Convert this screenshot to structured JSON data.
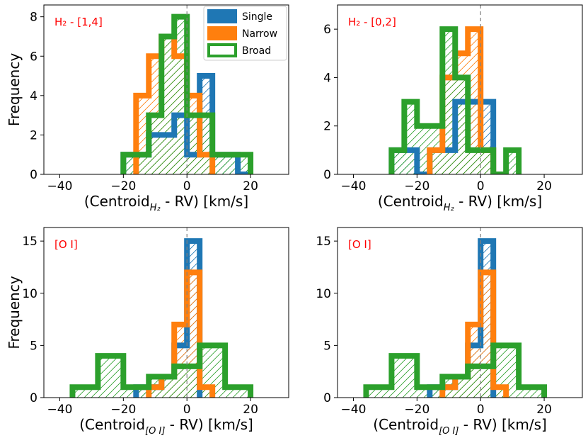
{
  "colors": {
    "single": "#1f77b4",
    "narrow": "#ff7f0e",
    "broad": "#2ca02c",
    "label": "#ff0000",
    "zero_line": "#808080"
  },
  "legend": [
    {
      "key": "single",
      "label": "Single"
    },
    {
      "key": "narrow",
      "label": "Narrow"
    },
    {
      "key": "broad",
      "label": "Broad"
    }
  ],
  "chart_data": [
    {
      "type": "histogram",
      "panel_label": "H₂ - [1,4]",
      "ylabel": "Frequency",
      "xlabel_prefix": "(Centroid",
      "xlabel_sub": "H₂",
      "xlabel_suffix": " - RV) [km/s]",
      "xlim": [
        -45,
        32
      ],
      "ylim": [
        0,
        8.6
      ],
      "xticks": [
        -40,
        -20,
        0,
        20
      ],
      "xtick_labels": [
        "−40",
        "−20",
        "0",
        "20"
      ],
      "yticks": [
        0,
        2,
        4,
        6,
        8
      ],
      "ytick_labels": [
        "0",
        "2",
        "4",
        "6",
        "8"
      ],
      "series": [
        {
          "name": "Single",
          "key": "single",
          "edges": [
            -20,
            -16,
            -12,
            -8,
            -4,
            0,
            4,
            8,
            12,
            16,
            20
          ],
          "counts": [
            1,
            1,
            2,
            2,
            3,
            1,
            5,
            1,
            1,
            0
          ]
        },
        {
          "name": "Narrow",
          "key": "narrow",
          "edges": [
            -16,
            -12,
            -8,
            -4,
            0,
            4,
            8
          ],
          "counts": [
            4,
            6,
            7,
            6,
            4,
            1
          ]
        },
        {
          "name": "Broad",
          "key": "broad",
          "edges": [
            -20,
            -16,
            -12,
            -8,
            -4,
            0,
            4,
            8,
            12,
            16,
            20
          ],
          "counts": [
            1,
            1,
            3,
            7,
            8,
            3,
            3,
            1,
            1,
            1
          ]
        }
      ]
    },
    {
      "type": "histogram",
      "panel_label": "H₂ - [0,2]",
      "ylabel": "",
      "xlabel_prefix": "(Centroid",
      "xlabel_sub": "H₂",
      "xlabel_suffix": " - RV) [km/s]",
      "xlim": [
        -45,
        32
      ],
      "ylim": [
        0,
        7
      ],
      "xticks": [
        -40,
        -20,
        0,
        20
      ],
      "xtick_labels": [
        "−40",
        "−20",
        "0",
        "20"
      ],
      "yticks": [
        0,
        2,
        4,
        6
      ],
      "ytick_labels": [
        "0",
        "2",
        "4",
        "6"
      ],
      "series": [
        {
          "name": "Single",
          "key": "single",
          "edges": [
            -28,
            -24,
            -20,
            -16,
            -12,
            -8,
            -4,
            0,
            4
          ],
          "counts": [
            1,
            1,
            0,
            1,
            1,
            3,
            3,
            3
          ]
        },
        {
          "name": "Narrow",
          "key": "narrow",
          "edges": [
            -16,
            -12,
            -8,
            -4,
            0,
            4
          ],
          "counts": [
            1,
            4,
            5,
            6,
            1
          ]
        },
        {
          "name": "Broad",
          "key": "broad",
          "edges": [
            -28,
            -24,
            -20,
            -16,
            -12,
            -8,
            -4,
            0,
            4,
            8,
            12
          ],
          "counts": [
            1,
            3,
            2,
            2,
            6,
            4,
            1,
            1,
            0,
            1
          ]
        }
      ]
    },
    {
      "type": "histogram",
      "panel_label": "[O I]",
      "ylabel": "Frequency",
      "xlabel_prefix": "(Centroid",
      "xlabel_sub": "[O I]",
      "xlabel_suffix": " - RV) [km/s]",
      "xlim": [
        -45,
        32
      ],
      "ylim": [
        0,
        16.3
      ],
      "xticks": [
        -40,
        -20,
        0,
        20
      ],
      "xtick_labels": [
        "−40",
        "−20",
        "0",
        "20"
      ],
      "yticks": [
        0,
        5,
        10,
        15
      ],
      "ytick_labels": [
        "0",
        "5",
        "10",
        "15"
      ],
      "series": [
        {
          "name": "Single",
          "key": "single",
          "edges": [
            -16,
            -12,
            -8,
            -4,
            0,
            4
          ],
          "counts": [
            1,
            1,
            2,
            5,
            15
          ]
        },
        {
          "name": "Narrow",
          "key": "narrow",
          "edges": [
            -12,
            -8,
            -4,
            0,
            4,
            8
          ],
          "counts": [
            1,
            2,
            7,
            12,
            1
          ]
        },
        {
          "name": "Broad",
          "key": "broad",
          "edges": [
            -36,
            -28,
            -20,
            -12,
            -4,
            4,
            12,
            20
          ],
          "counts": [
            1,
            4,
            1,
            2,
            3,
            5,
            1
          ]
        }
      ]
    },
    {
      "type": "histogram",
      "panel_label": "[O I]",
      "ylabel": "",
      "xlabel_prefix": "(Centroid",
      "xlabel_sub": "[O I]",
      "xlabel_suffix": " - RV) [km/s]",
      "xlim": [
        -45,
        32
      ],
      "ylim": [
        0,
        16.3
      ],
      "xticks": [
        -40,
        -20,
        0,
        20
      ],
      "xtick_labels": [
        "−40",
        "−20",
        "0",
        "20"
      ],
      "yticks": [
        0,
        5,
        10,
        15
      ],
      "ytick_labels": [
        "0",
        "5",
        "10",
        "15"
      ],
      "series": [
        {
          "name": "Single",
          "key": "single",
          "edges": [
            -16,
            -12,
            -8,
            -4,
            0,
            4
          ],
          "counts": [
            1,
            1,
            2,
            5,
            15
          ]
        },
        {
          "name": "Narrow",
          "key": "narrow",
          "edges": [
            -12,
            -8,
            -4,
            0,
            4,
            8
          ],
          "counts": [
            1,
            2,
            7,
            12,
            1
          ]
        },
        {
          "name": "Broad",
          "key": "broad",
          "edges": [
            -36,
            -28,
            -20,
            -12,
            -4,
            4,
            12,
            20
          ],
          "counts": [
            1,
            4,
            1,
            2,
            3,
            5,
            1
          ]
        }
      ]
    }
  ]
}
